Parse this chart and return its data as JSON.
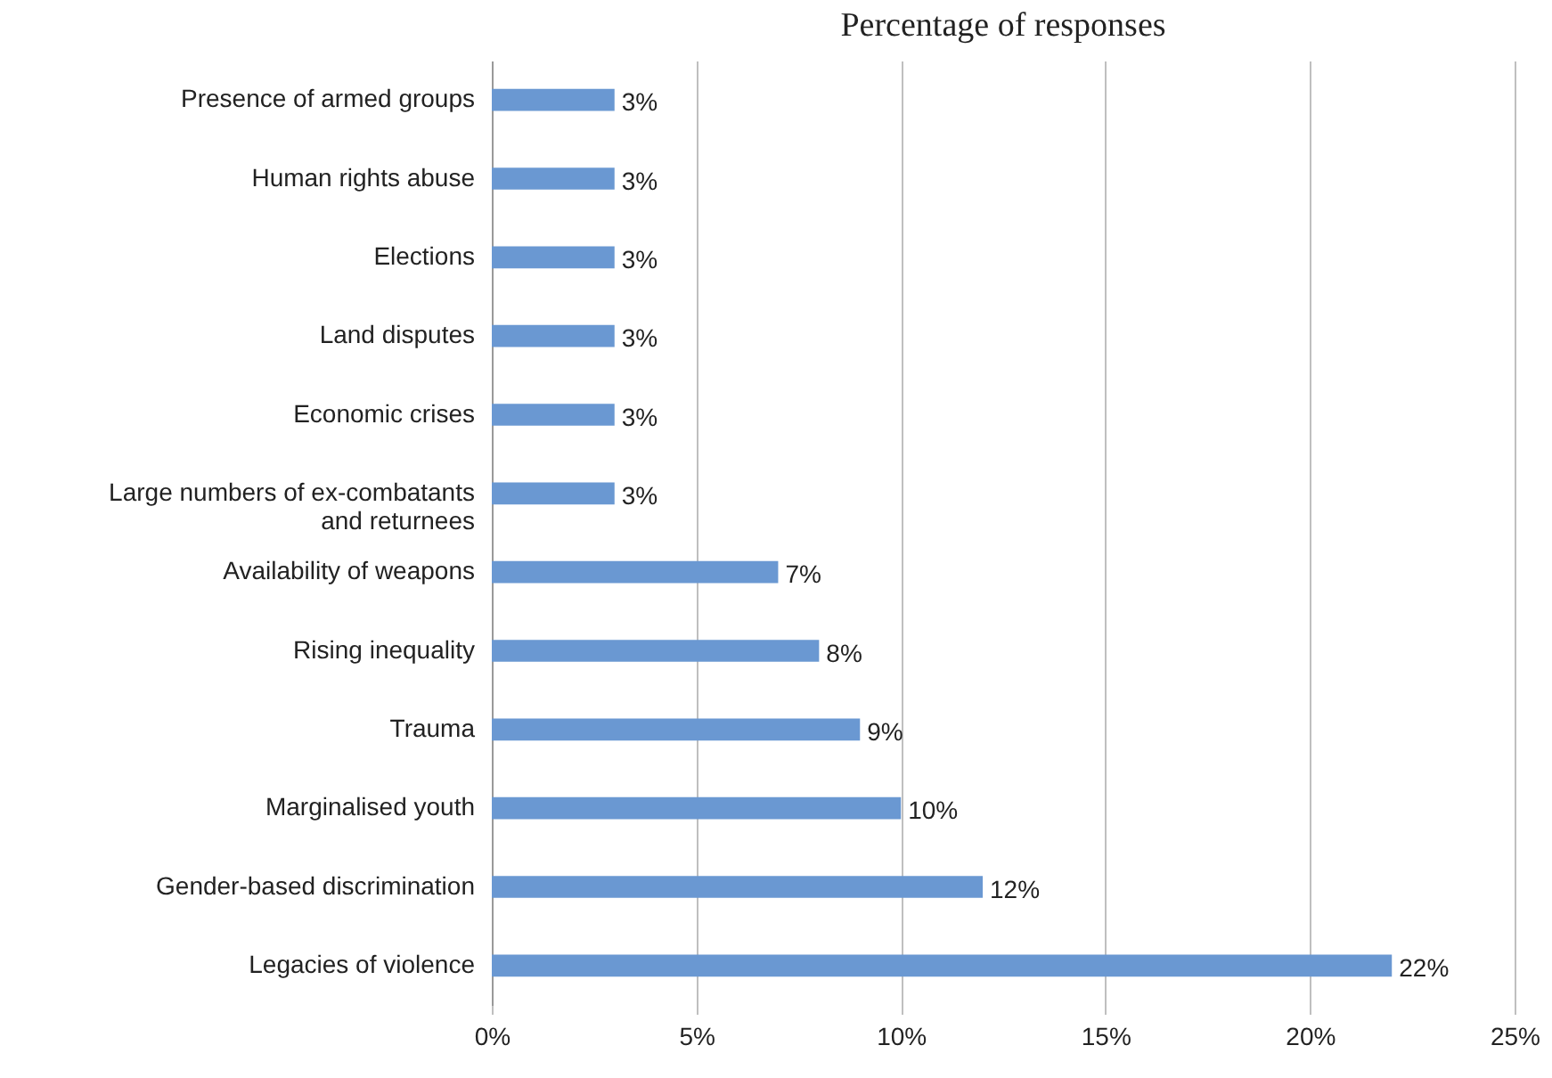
{
  "chart_data": {
    "type": "bar",
    "orientation": "horizontal",
    "title": "Percentage of responses",
    "categories": [
      "Presence of armed groups",
      "Human rights abuse",
      "Elections",
      "Land disputes",
      "Economic crises",
      "Large numbers of ex-combatants and returnees",
      "Availability of weapons",
      "Rising inequality",
      "Trauma",
      "Marginalised youth",
      "Gender-based discrimination",
      "Legacies of violence"
    ],
    "values": [
      3,
      3,
      3,
      3,
      3,
      3,
      7,
      8,
      9,
      10,
      12,
      22
    ],
    "value_labels": [
      "3%",
      "3%",
      "3%",
      "3%",
      "3%",
      "3%",
      "7%",
      "8%",
      "9%",
      "10%",
      "12%",
      "22%"
    ],
    "color": "#6a98d2",
    "xlim": [
      0,
      25
    ],
    "xticks": [
      {
        "value": 0,
        "label": "0%"
      },
      {
        "value": 5,
        "label": "5%"
      },
      {
        "value": 10,
        "label": "10%"
      },
      {
        "value": 15,
        "label": "15%"
      },
      {
        "value": 20,
        "label": "20%"
      },
      {
        "value": 25,
        "label": "25%"
      }
    ],
    "grid": "x"
  }
}
